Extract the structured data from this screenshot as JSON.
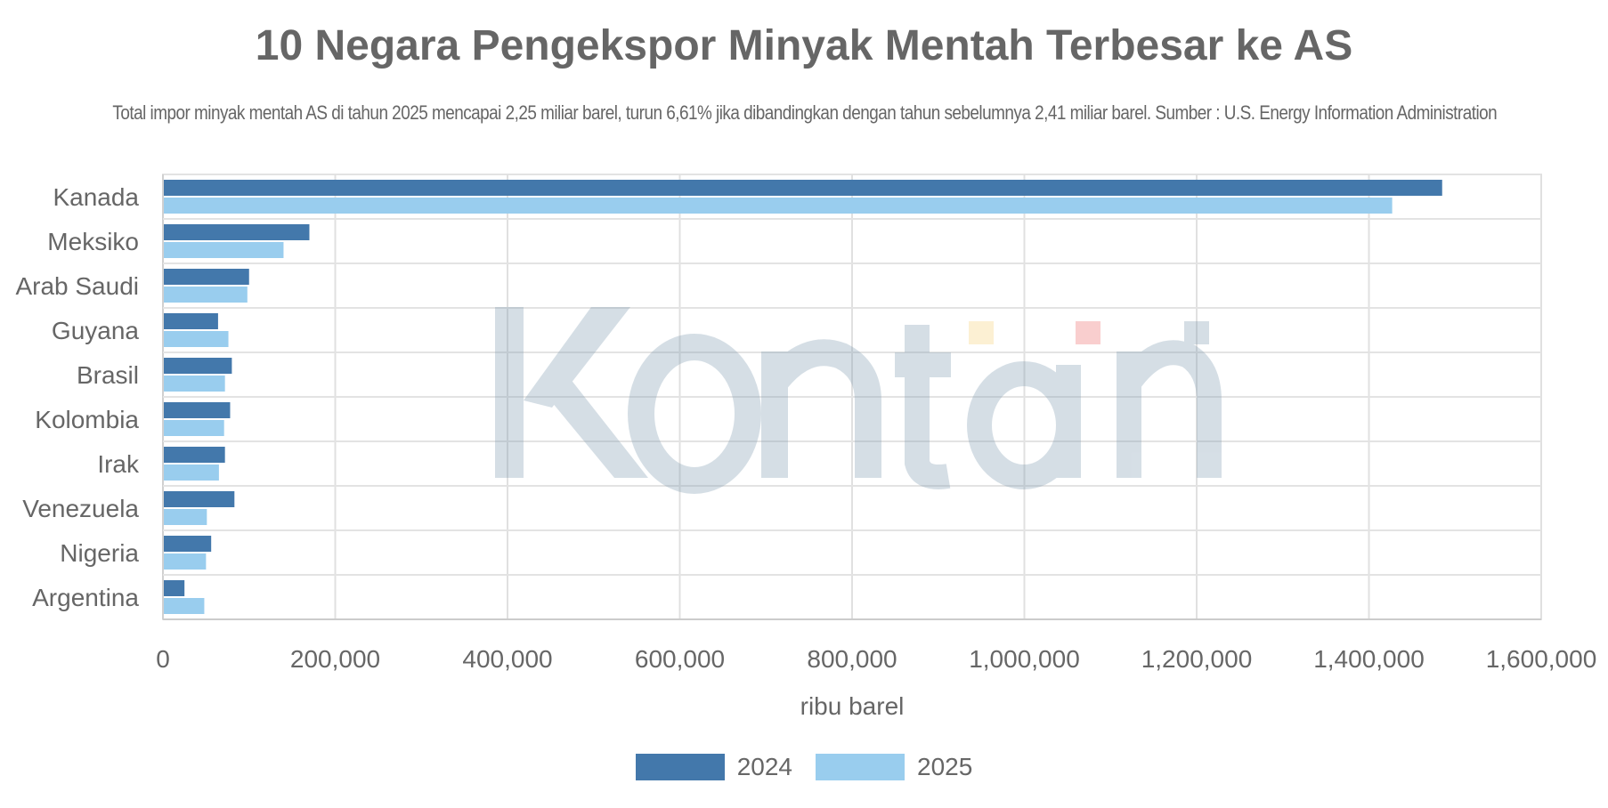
{
  "chart_data": {
    "type": "bar",
    "orientation": "horizontal",
    "title": "10 Negara Pengekspor Minyak Mentah Terbesar ke AS",
    "subtitle": "Total impor minyak mentah AS di tahun 2025 mencapai 2,25 miliar barel, turun 6,61% jika dibandingkan dengan tahun sebelumnya 2,41 miliar barel. Sumber : U.S. Energy Information Administration",
    "categories": [
      "Kanada",
      "Meksiko",
      "Arab Saudi",
      "Guyana",
      "Brasil",
      "Kolombia",
      "Irak",
      "Venezuela",
      "Nigeria",
      "Argentina"
    ],
    "series": [
      {
        "name": "2024",
        "color": "#4378ab",
        "values": [
          1485000,
          170000,
          100000,
          64000,
          80000,
          78000,
          72000,
          83000,
          56000,
          25000
        ]
      },
      {
        "name": "2025",
        "color": "#99cdee",
        "values": [
          1427000,
          140000,
          98000,
          76000,
          72000,
          71000,
          65000,
          51000,
          50000,
          48000
        ]
      }
    ],
    "xlabel": "ribu barel",
    "ylabel": "",
    "xlim": [
      0,
      1600000
    ],
    "xticks": [
      "0",
      "200,000",
      "400,000",
      "600,000",
      "800,000",
      "1,000,000",
      "1,200,000",
      "1,400,000",
      "1,600,000"
    ],
    "tick_values": [
      0,
      200000,
      400000,
      600000,
      800000,
      1000000,
      1200000,
      1400000,
      1600000
    ],
    "grid": true,
    "legend_position": "bottom-center"
  },
  "watermark": {
    "text": "Kontan"
  }
}
